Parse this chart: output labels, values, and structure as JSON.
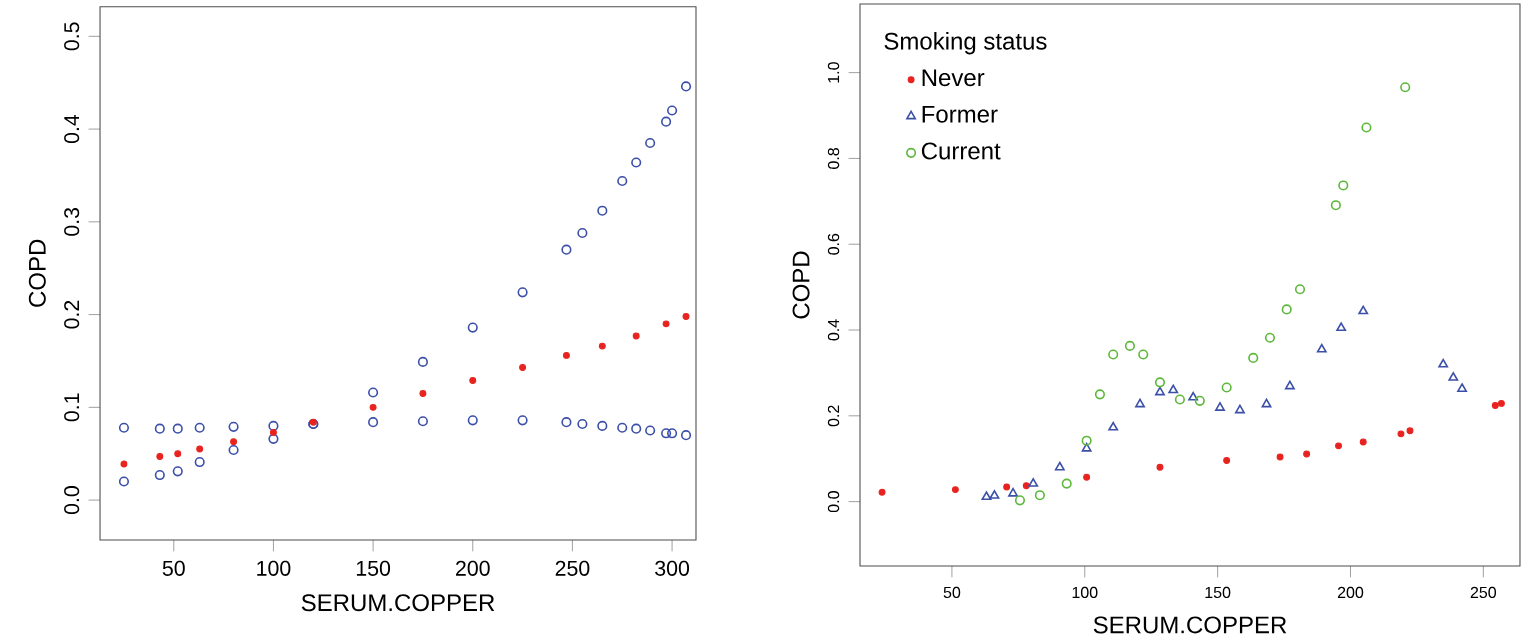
{
  "chart_data": [
    {
      "type": "scatter",
      "xlabel": "SERUM.COPPER",
      "ylabel": "COPD",
      "xlim": [
        13,
        312
      ],
      "ylim": [
        -0.043,
        0.532
      ],
      "xticks": [
        50,
        100,
        150,
        200,
        250,
        300
      ],
      "yticks": [
        {
          "value": 0,
          "label": "0.0"
        },
        {
          "value": 0.1,
          "label": "0.1"
        },
        {
          "value": 0.2,
          "label": "0.2"
        },
        {
          "value": 0.3,
          "label": "0.3"
        },
        {
          "value": 0.4,
          "label": "0.4"
        },
        {
          "value": 0.5,
          "label": "0.5"
        }
      ],
      "grid": false,
      "legend": false,
      "marker": "circle",
      "series": [
        {
          "color": "#3b4fa8",
          "x": [
            25,
            43,
            52,
            63,
            80,
            100,
            120,
            150,
            175,
            200,
            225,
            247,
            255,
            265,
            275,
            282,
            289,
            297,
            300,
            307
          ],
          "values": [
            0.02,
            0.027,
            0.031,
            0.041,
            0.054,
            0.066,
            0.082,
            0.116,
            0.149,
            0.186,
            0.224,
            0.27,
            0.288,
            0.312,
            0.344,
            0.364,
            0.385,
            0.408,
            0.42,
            0.446
          ]
        },
        {
          "color": "#3b4fa8",
          "x": [
            25,
            43,
            52,
            63,
            80,
            100,
            120,
            150,
            175,
            200,
            225,
            247,
            255,
            265,
            275,
            282,
            289,
            297,
            300,
            307
          ],
          "values": [
            0.078,
            0.077,
            0.077,
            0.078,
            0.079,
            0.08,
            0.082,
            0.084,
            0.085,
            0.086,
            0.086,
            0.084,
            0.082,
            0.08,
            0.078,
            0.077,
            0.075,
            0.072,
            0.072,
            0.07
          ]
        },
        {
          "color": "#e8231f",
          "marker": "dot",
          "x": [
            25,
            43,
            52,
            63,
            80,
            100,
            120,
            150,
            175,
            200,
            225,
            247,
            265,
            282,
            297,
            307
          ],
          "values": [
            0.039,
            0.047,
            0.05,
            0.055,
            0.063,
            0.073,
            0.084,
            0.1,
            0.115,
            0.129,
            0.143,
            0.156,
            0.166,
            0.177,
            0.19,
            0.198
          ]
        }
      ]
    },
    {
      "type": "scatter",
      "xlabel": "SERUM.COPPER",
      "ylabel": "COPD",
      "legend_title": "Smoking status",
      "legend": "top left",
      "xlim": [
        15.4,
        263.8
      ],
      "ylim": [
        -0.15,
        1.16
      ],
      "xticks": [
        50,
        100,
        150,
        200,
        250
      ],
      "yticks": [
        {
          "value": 0,
          "label": "0.0"
        },
        {
          "value": 0.2,
          "label": "0.2"
        },
        {
          "value": 0.4,
          "label": "0.4"
        },
        {
          "value": 0.6,
          "label": "0.6"
        },
        {
          "value": 0.8,
          "label": "0.8"
        },
        {
          "value": 1.0,
          "label": "1.0"
        }
      ],
      "grid": false,
      "series": [
        {
          "name": "Never",
          "color": "#e8231f",
          "marker": "dot",
          "x": [
            23.7,
            51.3,
            70.6,
            78,
            100.7,
            128.3,
            153.4,
            173.5,
            183.5,
            195.5,
            204.8,
            219,
            222.4,
            254.5,
            256.8
          ],
          "values": [
            0.022,
            0.028,
            0.034,
            0.037,
            0.057,
            0.08,
            0.096,
            0.104,
            0.111,
            0.13,
            0.139,
            0.158,
            0.165,
            0.224,
            0.229
          ]
        },
        {
          "name": "Former",
          "color": "#3b4fa8",
          "marker": "triangle",
          "x": [
            63,
            66,
            73,
            80.6,
            90.6,
            100.7,
            110.7,
            120.8,
            128.3,
            133.3,
            140.8,
            150.9,
            158.4,
            168.4,
            177.2,
            189.2,
            196.5,
            204.8,
            234.9,
            238.7,
            242
          ],
          "values": [
            0.011,
            0.014,
            0.019,
            0.042,
            0.08,
            0.124,
            0.173,
            0.227,
            0.255,
            0.26,
            0.243,
            0.219,
            0.213,
            0.227,
            0.269,
            0.355,
            0.405,
            0.444,
            0.32,
            0.289,
            0.263
          ]
        },
        {
          "name": "Current",
          "color": "#5cb83a",
          "marker": "circle",
          "x": [
            75.6,
            83.1,
            93.2,
            100.7,
            105.7,
            110.7,
            117,
            122,
            128.3,
            135.8,
            143.3,
            153.4,
            163.4,
            169.7,
            176,
            181,
            194.5,
            197.3,
            206,
            220.6
          ],
          "values": [
            0.003,
            0.015,
            0.042,
            0.142,
            0.25,
            0.343,
            0.363,
            0.343,
            0.278,
            0.238,
            0.235,
            0.266,
            0.335,
            0.382,
            0.448,
            0.495,
            0.691,
            0.737,
            0.872,
            0.966
          ]
        }
      ]
    }
  ]
}
